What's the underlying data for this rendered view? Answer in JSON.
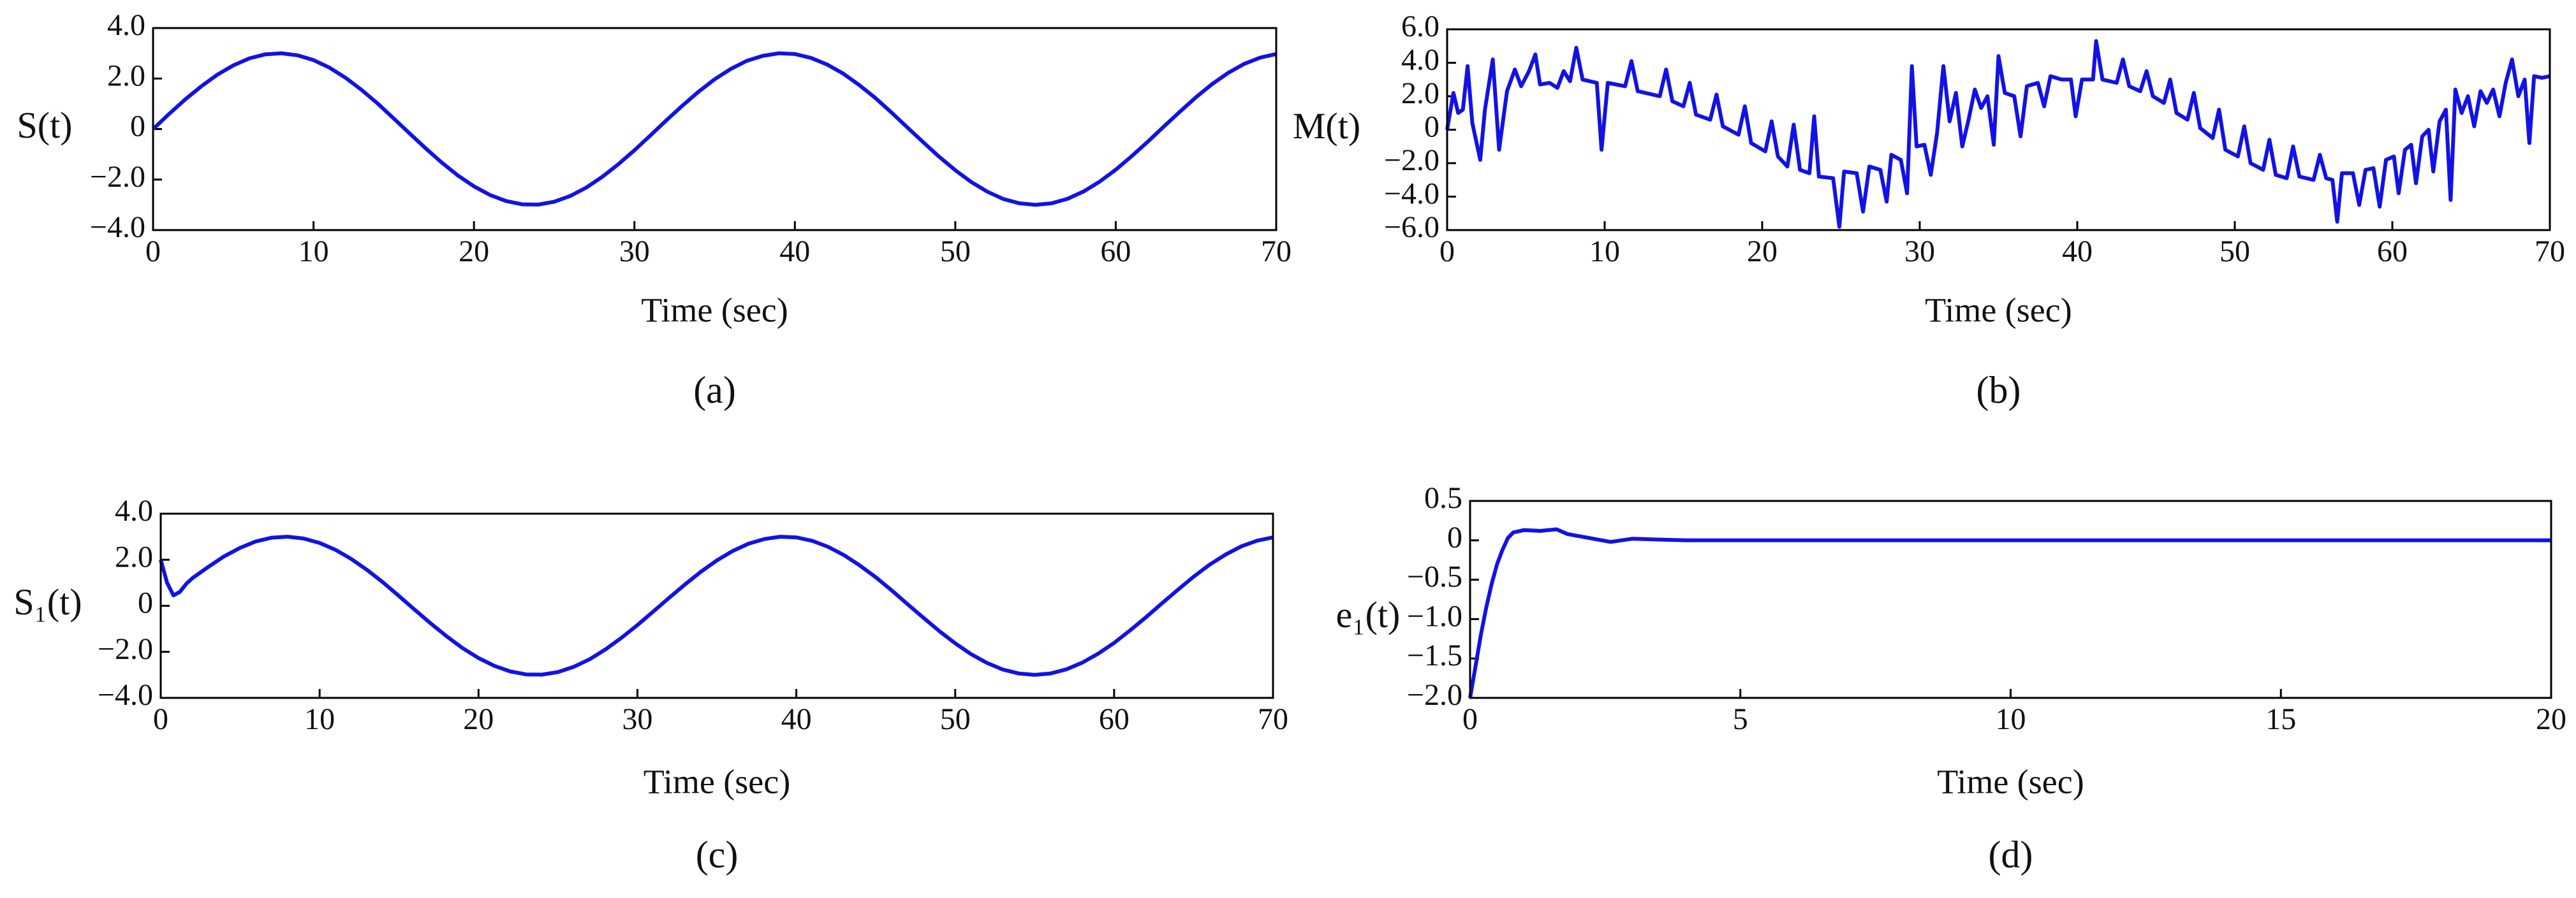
{
  "chart_data": [
    {
      "type": "line",
      "caption": "(a)",
      "xlabel": "Time (sec)",
      "ylabel": "S(t)",
      "color": "#1212e6",
      "xlim": [
        0,
        70
      ],
      "xticks": [
        0,
        10,
        20,
        30,
        40,
        50,
        60,
        70
      ],
      "ylim": [
        -4,
        4
      ],
      "yticks": [
        {
          "value": 4,
          "label": "4.0"
        },
        {
          "value": 2,
          "label": "2.0"
        },
        0,
        {
          "value": -2,
          "label": "−2.0"
        },
        {
          "value": -4,
          "label": "−4.0"
        }
      ],
      "x": [
        0,
        1,
        2,
        3,
        4,
        5,
        6,
        7,
        8,
        9,
        10,
        11,
        12,
        13,
        14,
        15,
        16,
        17,
        18,
        19,
        20,
        21,
        22,
        23,
        24,
        25,
        26,
        27,
        28,
        29,
        30,
        31,
        32,
        33,
        34,
        35,
        36,
        37,
        38,
        39,
        40,
        41,
        42,
        43,
        44,
        45,
        46,
        47,
        48,
        49,
        50,
        51,
        52,
        53,
        54,
        55,
        56,
        57,
        58,
        59,
        60,
        61,
        62,
        63,
        64,
        65,
        66,
        67,
        68,
        69,
        70
      ],
      "values": [
        0,
        0.6,
        1.17,
        1.69,
        2.15,
        2.52,
        2.8,
        2.96,
        3.0,
        2.92,
        2.73,
        2.43,
        2.03,
        1.55,
        1.01,
        0.42,
        -0.18,
        -0.77,
        -1.33,
        -1.84,
        -2.27,
        -2.61,
        -2.85,
        -2.98,
        -2.99,
        -2.88,
        -2.65,
        -2.32,
        -1.89,
        -1.39,
        -0.84,
        -0.25,
        0.35,
        0.93,
        1.48,
        1.97,
        2.38,
        2.7,
        2.9,
        3.0,
        2.97,
        2.82,
        2.56,
        2.2,
        1.75,
        1.24,
        0.67,
        0.07,
        -0.52,
        -1.1,
        -1.63,
        -2.1,
        -2.48,
        -2.77,
        -2.94,
        -3.0,
        -2.94,
        -2.76,
        -2.47,
        -2.08,
        -1.61,
        -1.07,
        -0.5,
        0.1,
        0.69,
        1.26,
        1.78,
        2.22,
        2.58,
        2.83,
        2.97
      ]
    },
    {
      "type": "line",
      "caption": "(b)",
      "xlabel": "Time (sec)",
      "ylabel": "M(t)",
      "color": "#1212e6",
      "xlim": [
        0,
        70
      ],
      "xticks": [
        0,
        10,
        20,
        30,
        40,
        50,
        60,
        70
      ],
      "ylim": [
        -6,
        6
      ],
      "yticks": [
        {
          "value": 6,
          "label": "6.0"
        },
        {
          "value": 4,
          "label": "4.0"
        },
        {
          "value": 2,
          "label": "2.0"
        },
        0,
        {
          "value": -2,
          "label": "−2.0"
        },
        {
          "value": -4,
          "label": "−4.0"
        },
        {
          "value": -6,
          "label": "−6.0"
        }
      ],
      "x": [
        0,
        0.4,
        0.7,
        1,
        1.3,
        1.6,
        2.1,
        2.4,
        2.9,
        3.3,
        3.8,
        4.3,
        4.7,
        5.2,
        5.6,
        5.9,
        6.5,
        7,
        7.4,
        7.8,
        8.2,
        8.6,
        9.5,
        9.8,
        10.2,
        11.3,
        11.7,
        12.1,
        13.5,
        13.9,
        14.3,
        15,
        15.4,
        15.8,
        16.7,
        17.1,
        17.5,
        18.5,
        18.9,
        19.3,
        20.2,
        20.6,
        21,
        21.6,
        22,
        22.4,
        23,
        23.3,
        23.6,
        24.5,
        24.9,
        25.2,
        26,
        26.4,
        26.8,
        27.5,
        27.9,
        28.2,
        28.8,
        29.2,
        29.5,
        29.8,
        30.3,
        30.7,
        31.1,
        31.5,
        31.9,
        32.3,
        32.7,
        33.1,
        33.5,
        33.9,
        34.3,
        34.7,
        35,
        35.4,
        36,
        36.4,
        36.8,
        37.5,
        37.9,
        38.3,
        39,
        39.6,
        39.9,
        40.3,
        41,
        41.2,
        41.6,
        42.5,
        42.9,
        43.3,
        44,
        44.4,
        44.8,
        45.5,
        45.9,
        46.3,
        47,
        47.4,
        47.8,
        48.6,
        49,
        49.4,
        50.2,
        50.6,
        51,
        51.8,
        52.2,
        52.6,
        53.3,
        53.7,
        54.1,
        55,
        55.4,
        55.8,
        56.2,
        56.5,
        56.8,
        57.5,
        57.9,
        58.3,
        58.8,
        59.2,
        59.6,
        60.1,
        60.4,
        60.8,
        61.2,
        61.5,
        61.9,
        62.3,
        62.6,
        63,
        63.4,
        63.7,
        64,
        64.4,
        64.8,
        65.2,
        65.6,
        66,
        66.4,
        66.8,
        67.2,
        67.6,
        68,
        68.4,
        68.7,
        69,
        69.5,
        70
      ],
      "values": [
        0,
        2.2,
        1.0,
        1.2,
        3.8,
        0.4,
        -1.8,
        1.2,
        4.2,
        -1.2,
        2.3,
        3.6,
        2.6,
        3.5,
        4.5,
        2.7,
        2.8,
        2.5,
        3.5,
        2.9,
        4.9,
        3.0,
        2.8,
        -1.2,
        2.8,
        2.6,
        4.1,
        2.3,
        2.0,
        3.6,
        1.7,
        1.4,
        2.8,
        0.9,
        0.6,
        2.1,
        0.2,
        -0.3,
        1.4,
        -0.8,
        -1.3,
        0.5,
        -1.6,
        -2.2,
        0.3,
        -2.4,
        -2.6,
        0.8,
        -2.8,
        -2.9,
        -5.8,
        -2.5,
        -2.6,
        -4.9,
        -2.2,
        -2.4,
        -4.3,
        -1.5,
        -1.8,
        -3.8,
        3.8,
        -1.0,
        -0.9,
        -2.7,
        -0.2,
        3.8,
        0.5,
        2.2,
        -1.0,
        0.6,
        2.4,
        1.3,
        2.0,
        -0.9,
        4.4,
        2.2,
        2.0,
        -0.4,
        2.6,
        2.8,
        1.4,
        3.2,
        3.0,
        3.0,
        0.8,
        3.0,
        3.0,
        5.3,
        3.0,
        2.8,
        4.2,
        2.6,
        2.3,
        3.5,
        2.0,
        1.6,
        3.0,
        1.0,
        0.6,
        2.2,
        0.1,
        -0.5,
        1.2,
        -1.2,
        -1.6,
        0.2,
        -2.0,
        -2.4,
        -0.6,
        -2.7,
        -2.9,
        -1.0,
        -2.8,
        -3.0,
        -1.5,
        -2.9,
        -3.0,
        -5.5,
        -2.6,
        -2.6,
        -4.5,
        -2.4,
        -2.3,
        -4.6,
        -1.8,
        -1.6,
        -3.8,
        -1.2,
        -0.9,
        -3.2,
        -0.4,
        0.0,
        -2.5,
        0.5,
        1.2,
        -4.2,
        2.4,
        1.0,
        2.0,
        0.2,
        2.3,
        1.6,
        2.4,
        0.8,
        2.8,
        4.2,
        2.0,
        3.0,
        -0.8,
        3.2,
        3.1,
        3.2
      ]
    },
    {
      "type": "line",
      "caption": "(c)",
      "xlabel": "Time (sec)",
      "ylabel": "S₁(t)",
      "color": "#1212e6",
      "xlim": [
        0,
        70
      ],
      "xticks": [
        0,
        10,
        20,
        30,
        40,
        50,
        60,
        70
      ],
      "ylim": [
        -4,
        4
      ],
      "yticks": [
        {
          "value": 4,
          "label": "4.0"
        },
        {
          "value": 2,
          "label": "2.0"
        },
        0,
        {
          "value": -2,
          "label": "−2.0"
        },
        {
          "value": -4,
          "label": "−4.0"
        }
      ],
      "x": [
        0,
        0.4,
        0.8,
        1.2,
        1.6,
        2,
        3,
        4,
        5,
        6,
        7,
        8,
        9,
        10,
        11,
        12,
        13,
        14,
        15,
        16,
        17,
        18,
        19,
        20,
        21,
        22,
        23,
        24,
        25,
        26,
        27,
        28,
        29,
        30,
        31,
        32,
        33,
        34,
        35,
        36,
        37,
        38,
        39,
        40,
        41,
        42,
        43,
        44,
        45,
        46,
        47,
        48,
        49,
        50,
        51,
        52,
        53,
        54,
        55,
        56,
        57,
        58,
        59,
        60,
        61,
        62,
        63,
        64,
        65,
        66,
        67,
        68,
        69,
        70
      ],
      "values": [
        2.0,
        1.0,
        0.45,
        0.6,
        0.95,
        1.2,
        1.69,
        2.15,
        2.52,
        2.8,
        2.96,
        3.0,
        2.92,
        2.73,
        2.43,
        2.03,
        1.55,
        1.01,
        0.42,
        -0.18,
        -0.77,
        -1.33,
        -1.84,
        -2.27,
        -2.61,
        -2.85,
        -2.98,
        -2.99,
        -2.88,
        -2.65,
        -2.32,
        -1.89,
        -1.39,
        -0.84,
        -0.25,
        0.35,
        0.93,
        1.48,
        1.97,
        2.38,
        2.7,
        2.9,
        3.0,
        2.97,
        2.82,
        2.56,
        2.2,
        1.75,
        1.24,
        0.67,
        0.07,
        -0.52,
        -1.1,
        -1.63,
        -2.1,
        -2.48,
        -2.77,
        -2.94,
        -3.0,
        -2.94,
        -2.76,
        -2.47,
        -2.08,
        -1.61,
        -1.07,
        -0.5,
        0.1,
        0.69,
        1.26,
        1.78,
        2.22,
        2.58,
        2.83,
        2.97
      ]
    },
    {
      "type": "line",
      "caption": "(d)",
      "xlabel": "Time (sec)",
      "ylabel": "e₁(t)",
      "color": "#1212e6",
      "xlim": [
        0,
        20
      ],
      "xticks": [
        0,
        5,
        10,
        15,
        20
      ],
      "ylim": [
        -2,
        0.5
      ],
      "yticks": [
        0.5,
        0,
        {
          "value": -0.5,
          "label": "−0.5"
        },
        {
          "value": -1,
          "label": "−1.0"
        },
        {
          "value": -1.5,
          "label": "−1.5"
        },
        {
          "value": -2,
          "label": "−2.0"
        }
      ],
      "x": [
        0,
        0.1,
        0.2,
        0.3,
        0.4,
        0.5,
        0.6,
        0.7,
        0.8,
        1.0,
        1.3,
        1.6,
        1.8,
        2.2,
        2.6,
        3.0,
        3.5,
        4,
        5,
        10,
        15,
        20
      ],
      "values": [
        -2.0,
        -1.6,
        -1.2,
        -0.85,
        -0.55,
        -0.3,
        -0.12,
        0.03,
        0.1,
        0.13,
        0.12,
        0.14,
        0.08,
        0.03,
        -0.02,
        0.02,
        0.01,
        0,
        0,
        0,
        0,
        0
      ]
    }
  ]
}
